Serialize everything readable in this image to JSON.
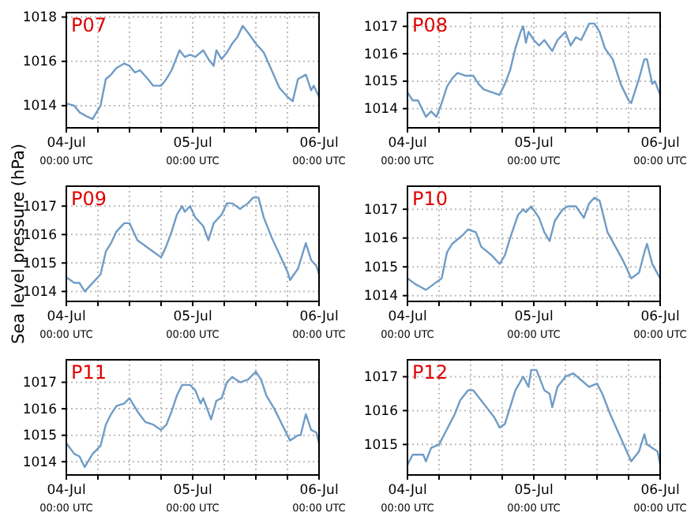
{
  "chart_data": [
    {
      "type": "line",
      "title": "P07",
      "xlim": [
        "--07-04T00:00",
        "--07-06T00:00"
      ],
      "ylim": [
        1013,
        1018.2
      ],
      "yticks": [
        1014,
        1016,
        1018
      ],
      "grid": true,
      "xticks": [
        {
          "value": "--07-04T00:00",
          "label": "04-Jul\n00:00 UTC"
        },
        {
          "value": "--07-04T06:00",
          "label": null
        },
        {
          "value": "--07-04T12:00",
          "label": null
        },
        {
          "value": "--07-04T18:00",
          "label": null
        },
        {
          "value": "--07-05T00:00",
          "label": "05-Jul\n00:00 UTC"
        },
        {
          "value": "--07-05T06:00",
          "label": null
        },
        {
          "value": "--07-05T12:00",
          "label": null
        },
        {
          "value": "--07-05T18:00",
          "label": null
        },
        {
          "value": "--07-06T00:00",
          "label": "06-Jul\n00:00 UTC"
        }
      ],
      "series": [
        {
          "color": "#6f9cc6",
          "x": [
            "--07-04T00:00",
            "--07-04T01:30",
            "--07-04T02:30",
            "--07-04T04:00",
            "--07-04T05:00",
            "--07-04T05:30",
            "--07-04T06:30",
            "--07-04T07:30",
            "--07-04T08:30",
            "--07-04T09:30",
            "--07-04T11:00",
            "--07-04T12:00",
            "--07-04T13:00",
            "--07-04T14:00",
            "--07-04T15:30",
            "--07-04T16:30",
            "--07-04T18:00",
            "--07-04T19:00",
            "--07-04T20:00",
            "--07-04T21:00",
            "--07-04T21:30",
            "--07-04T22:30",
            "--07-04T23:30",
            "--07-05T00:30",
            "--07-05T02:00",
            "--07-05T03:00",
            "--07-05T04:00",
            "--07-05T04:30",
            "--07-05T05:30",
            "--07-05T06:30",
            "--07-05T07:30",
            "--07-05T08:30",
            "--07-05T09:30",
            "--07-05T10:30",
            "--07-05T12:00",
            "--07-05T13:30",
            "--07-05T15:00",
            "--07-05T16:30",
            "--07-05T18:00",
            "--07-05T19:00",
            "--07-05T20:00",
            "--07-05T21:30",
            "--07-05T22:30",
            "--07-05T23:00",
            "--07-06T00:00"
          ],
          "values": [
            1014.1,
            1014,
            1013.7,
            1013.5,
            1013.4,
            1013.6,
            1014,
            1015.2,
            1015.4,
            1015.7,
            1015.9,
            1015.8,
            1015.5,
            1015.6,
            1015.2,
            1014.9,
            1014.9,
            1015.2,
            1015.6,
            1016.2,
            1016.5,
            1016.2,
            1016.3,
            1016.2,
            1016.5,
            1016.1,
            1015.8,
            1016.5,
            1016.1,
            1016.4,
            1016.8,
            1017.1,
            1017.6,
            1017.3,
            1016.8,
            1016.4,
            1015.6,
            1014.8,
            1014.4,
            1014.2,
            1015.2,
            1015.4,
            1014.7,
            1014.9,
            1014.4
          ]
        }
      ]
    },
    {
      "type": "line",
      "title": "P08",
      "xlim": [
        "--07-04T00:00",
        "--07-06T00:00"
      ],
      "ylim": [
        1013.3,
        1017.5
      ],
      "yticks": [
        1014,
        1015,
        1016,
        1017
      ],
      "grid": true,
      "xticks": [
        {
          "value": "--07-04T00:00",
          "label": "04-Jul\n00:00 UTC"
        },
        {
          "value": "--07-04T06:00",
          "label": null
        },
        {
          "value": "--07-04T12:00",
          "label": null
        },
        {
          "value": "--07-04T18:00",
          "label": null
        },
        {
          "value": "--07-05T00:00",
          "label": "05-Jul\n00:00 UTC"
        },
        {
          "value": "--07-05T06:00",
          "label": null
        },
        {
          "value": "--07-05T12:00",
          "label": null
        },
        {
          "value": "--07-05T18:00",
          "label": null
        },
        {
          "value": "--07-06T00:00",
          "label": "06-Jul\n00:00 UTC"
        }
      ],
      "series": [
        {
          "color": "#6f9cc6",
          "x": [
            "--07-04T00:00",
            "--07-04T01:00",
            "--07-04T02:00",
            "--07-04T03:00",
            "--07-04T03:30",
            "--07-04T04:30",
            "--07-04T05:30",
            "--07-04T06:30",
            "--07-04T07:30",
            "--07-04T08:30",
            "--07-04T09:30",
            "--07-04T11:00",
            "--07-04T12:30",
            "--07-04T13:30",
            "--07-04T14:30",
            "--07-04T16:00",
            "--07-04T17:30",
            "--07-04T18:30",
            "--07-04T19:30",
            "--07-04T20:30",
            "--07-04T21:30",
            "--07-04T22:00",
            "--07-04T22:30",
            "--07-04T23:00",
            "--07-05T00:00",
            "--07-05T01:00",
            "--07-05T02:00",
            "--07-05T03:30",
            "--07-05T04:30",
            "--07-05T06:00",
            "--07-05T07:00",
            "--07-05T08:00",
            "--07-05T09:00",
            "--07-05T10:30",
            "--07-05T11:30",
            "--07-05T12:30",
            "--07-05T13:30",
            "--07-05T15:00",
            "--07-05T16:30",
            "--07-05T18:00",
            "--07-05T18:30",
            "--07-05T20:00",
            "--07-05T21:00",
            "--07-05T21:30",
            "--07-05T22:30",
            "--07-05T23:00",
            "--07-06T00:00"
          ],
          "values": [
            1014.6,
            1014.3,
            1014.3,
            1013.9,
            1013.7,
            1013.9,
            1013.7,
            1014.2,
            1014.8,
            1015.1,
            1015.3,
            1015.2,
            1015.2,
            1014.9,
            1014.7,
            1014.6,
            1014.5,
            1014.9,
            1015.4,
            1016.2,
            1016.8,
            1017,
            1016.4,
            1016.8,
            1016.5,
            1016.3,
            1016.5,
            1016.1,
            1016.5,
            1016.8,
            1016.3,
            1016.6,
            1016.5,
            1017.1,
            1017.1,
            1016.8,
            1016.2,
            1015.8,
            1014.9,
            1014.3,
            1014.2,
            1015.1,
            1015.8,
            1015.8,
            1014.9,
            1015,
            1014.5
          ]
        }
      ]
    },
    {
      "type": "line",
      "title": "P09",
      "ylabel": "Sea level pressure (hPa)",
      "xlim": [
        "--07-04T00:00",
        "--07-06T00:00"
      ],
      "ylim": [
        1013.65,
        1017.7
      ],
      "yticks": [
        1014,
        1015,
        1016,
        1017
      ],
      "grid": true,
      "xticks": [
        {
          "value": "--07-04T00:00",
          "label": "04-Jul\n00:00 UTC"
        },
        {
          "value": "--07-04T06:00",
          "label": null
        },
        {
          "value": "--07-04T12:00",
          "label": null
        },
        {
          "value": "--07-04T18:00",
          "label": null
        },
        {
          "value": "--07-05T00:00",
          "label": "05-Jul\n00:00 UTC"
        },
        {
          "value": "--07-05T06:00",
          "label": null
        },
        {
          "value": "--07-05T12:00",
          "label": null
        },
        {
          "value": "--07-05T18:00",
          "label": null
        },
        {
          "value": "--07-06T00:00",
          "label": "06-Jul\n00:00 UTC"
        }
      ],
      "series": [
        {
          "color": "#6f9cc6",
          "x": [
            "--07-04T00:00",
            "--07-04T01:30",
            "--07-04T02:30",
            "--07-04T03:30",
            "--07-04T05:00",
            "--07-04T06:30",
            "--07-04T07:30",
            "--07-04T08:30",
            "--07-04T09:30",
            "--07-04T11:00",
            "--07-04T12:00",
            "--07-04T13:30",
            "--07-04T15:00",
            "--07-04T16:30",
            "--07-04T18:00",
            "--07-04T19:00",
            "--07-04T20:00",
            "--07-04T21:00",
            "--07-04T22:00",
            "--07-04T22:30",
            "--07-04T23:30",
            "--07-05T00:30",
            "--07-05T02:00",
            "--07-05T03:00",
            "--07-05T04:00",
            "--07-05T05:30",
            "--07-05T06:30",
            "--07-05T07:30",
            "--07-05T09:00",
            "--07-05T10:30",
            "--07-05T11:30",
            "--07-05T12:30",
            "--07-05T13:30",
            "--07-05T15:00",
            "--07-05T16:30",
            "--07-05T18:00",
            "--07-05T18:30",
            "--07-05T20:00",
            "--07-05T21:00",
            "--07-05T21:30",
            "--07-05T22:30",
            "--07-05T23:30",
            "--07-06T00:00"
          ],
          "values": [
            1014.5,
            1014.3,
            1014.3,
            1014,
            1014.3,
            1014.6,
            1015.4,
            1015.7,
            1016.1,
            1016.4,
            1016.4,
            1015.8,
            1015.6,
            1015.4,
            1015.2,
            1015.6,
            1016.1,
            1016.7,
            1017,
            1016.8,
            1017,
            1016.6,
            1016.3,
            1015.8,
            1016.4,
            1016.7,
            1017.1,
            1017.1,
            1016.9,
            1017.1,
            1017.3,
            1017.3,
            1016.6,
            1015.9,
            1015.3,
            1014.7,
            1014.4,
            1014.8,
            1015.4,
            1015.7,
            1015.1,
            1014.9,
            1014.6
          ]
        }
      ]
    },
    {
      "type": "line",
      "title": "P10",
      "xlim": [
        "--07-04T00:00",
        "--07-06T00:00"
      ],
      "ylim": [
        1013.8,
        1017.8
      ],
      "yticks": [
        1014,
        1015,
        1016,
        1017
      ],
      "grid": true,
      "xticks": [
        {
          "value": "--07-04T00:00",
          "label": "04-Jul\n00:00 UTC"
        },
        {
          "value": "--07-04T06:00",
          "label": null
        },
        {
          "value": "--07-04T12:00",
          "label": null
        },
        {
          "value": "--07-04T18:00",
          "label": null
        },
        {
          "value": "--07-05T00:00",
          "label": "05-Jul\n00:00 UTC"
        },
        {
          "value": "--07-05T06:00",
          "label": null
        },
        {
          "value": "--07-05T12:00",
          "label": null
        },
        {
          "value": "--07-05T18:00",
          "label": null
        },
        {
          "value": "--07-06T00:00",
          "label": "06-Jul\n00:00 UTC"
        }
      ],
      "series": [
        {
          "color": "#6f9cc6",
          "x": [
            "--07-04T00:00",
            "--07-04T01:30",
            "--07-04T02:30",
            "--07-04T03:30",
            "--07-04T05:00",
            "--07-04T06:30",
            "--07-04T07:30",
            "--07-04T08:30",
            "--07-04T10:30",
            "--07-04T11:30",
            "--07-04T13:00",
            "--07-04T14:00",
            "--07-04T16:00",
            "--07-04T17:30",
            "--07-04T18:30",
            "--07-04T19:30",
            "--07-04T21:00",
            "--07-04T22:00",
            "--07-04T22:30",
            "--07-04T23:30",
            "--07-05T01:00",
            "--07-05T02:00",
            "--07-05T03:00",
            "--07-05T04:00",
            "--07-05T05:30",
            "--07-05T06:30",
            "--07-05T08:00",
            "--07-05T09:30",
            "--07-05T10:30",
            "--07-05T11:30",
            "--07-05T12:30",
            "--07-05T14:00",
            "--07-05T15:30",
            "--07-05T17:00",
            "--07-05T18:30",
            "--07-05T20:00",
            "--07-05T21:00",
            "--07-05T21:30",
            "--07-05T22:30",
            "--07-06T00:00"
          ],
          "values": [
            1014.6,
            1014.4,
            1014.3,
            1014.2,
            1014.4,
            1014.6,
            1015.5,
            1015.8,
            1016.1,
            1016.3,
            1016.2,
            1015.7,
            1015.4,
            1015.1,
            1015.4,
            1016,
            1016.8,
            1017,
            1016.9,
            1017.1,
            1016.7,
            1016.2,
            1015.9,
            1016.6,
            1017,
            1017.1,
            1017.1,
            1016.7,
            1017.2,
            1017.4,
            1017.3,
            1016.2,
            1015.7,
            1015.2,
            1014.6,
            1014.8,
            1015.5,
            1015.8,
            1015.1,
            1014.6
          ]
        }
      ]
    },
    {
      "type": "line",
      "title": "P11",
      "xlim": [
        "--07-04T00:00",
        "--07-06T00:00"
      ],
      "ylim": [
        1013.5,
        1017.85
      ],
      "yticks": [
        1014,
        1015,
        1016,
        1017
      ],
      "grid": true,
      "xticks": [
        {
          "value": "--07-04T00:00",
          "label": "04-Jul\n00:00 UTC"
        },
        {
          "value": "--07-04T06:00",
          "label": null
        },
        {
          "value": "--07-04T12:00",
          "label": null
        },
        {
          "value": "--07-04T18:00",
          "label": null
        },
        {
          "value": "--07-05T00:00",
          "label": "05-Jul\n00:00 UTC"
        },
        {
          "value": "--07-05T06:00",
          "label": null
        },
        {
          "value": "--07-05T12:00",
          "label": null
        },
        {
          "value": "--07-05T18:00",
          "label": null
        },
        {
          "value": "--07-06T00:00",
          "label": "06-Jul\n00:00 UTC"
        }
      ],
      "series": [
        {
          "color": "#6f9cc6",
          "x": [
            "--07-04T00:00",
            "--07-04T01:30",
            "--07-04T02:30",
            "--07-04T03:30",
            "--07-04T05:00",
            "--07-04T06:30",
            "--07-04T07:30",
            "--07-04T08:30",
            "--07-04T09:30",
            "--07-04T11:00",
            "--07-04T12:00",
            "--07-04T13:30",
            "--07-04T15:00",
            "--07-04T16:30",
            "--07-04T18:00",
            "--07-04T19:00",
            "--07-04T20:00",
            "--07-04T21:00",
            "--07-04T22:00",
            "--07-04T23:30",
            "--07-05T00:30",
            "--07-05T01:30",
            "--07-05T02:00",
            "--07-05T03:30",
            "--07-05T04:30",
            "--07-05T05:30",
            "--07-05T06:30",
            "--07-05T07:30",
            "--07-05T09:00",
            "--07-05T10:30",
            "--07-05T12:00",
            "--07-05T13:00",
            "--07-05T14:00",
            "--07-05T15:30",
            "--07-05T17:00",
            "--07-05T18:30",
            "--07-05T20:00",
            "--07-05T20:30",
            "--07-05T21:30",
            "--07-05T22:30",
            "--07-05T23:30",
            "--07-06T00:00"
          ],
          "values": [
            1014.7,
            1014.3,
            1014.2,
            1013.8,
            1014.3,
            1014.6,
            1015.4,
            1015.8,
            1016.1,
            1016.2,
            1016.4,
            1015.9,
            1015.5,
            1015.4,
            1015.2,
            1015.4,
            1015.9,
            1016.5,
            1016.9,
            1016.9,
            1016.7,
            1016.2,
            1016.4,
            1015.6,
            1016.3,
            1016.4,
            1017,
            1017.2,
            1017,
            1017.1,
            1017.4,
            1017.1,
            1016.5,
            1016,
            1015.4,
            1014.8,
            1015,
            1015,
            1015.8,
            1015.2,
            1015.1,
            1014.7
          ]
        }
      ]
    },
    {
      "type": "line",
      "title": "P12",
      "xlim": [
        "--07-04T00:00",
        "--07-06T00:00"
      ],
      "ylim": [
        1014.1,
        1017.5
      ],
      "yticks": [
        1015,
        1016,
        1017
      ],
      "grid": true,
      "xticks": [
        {
          "value": "--07-04T00:00",
          "label": "04-Jul\n00:00 UTC"
        },
        {
          "value": "--07-04T06:00",
          "label": null
        },
        {
          "value": "--07-04T12:00",
          "label": null
        },
        {
          "value": "--07-04T18:00",
          "label": null
        },
        {
          "value": "--07-05T00:00",
          "label": "05-Jul\n00:00 UTC"
        },
        {
          "value": "--07-05T06:00",
          "label": null
        },
        {
          "value": "--07-05T12:00",
          "label": null
        },
        {
          "value": "--07-05T18:00",
          "label": null
        },
        {
          "value": "--07-06T00:00",
          "label": "06-Jul\n00:00 UTC"
        }
      ],
      "series": [
        {
          "color": "#6f9cc6",
          "x": [
            "--07-04T00:00",
            "--07-04T01:00",
            "--07-04T02:00",
            "--07-04T03:00",
            "--07-04T03:30",
            "--07-04T04:30",
            "--07-04T06:00",
            "--07-04T07:00",
            "--07-04T08:00",
            "--07-04T09:00",
            "--07-04T10:00",
            "--07-04T11:30",
            "--07-04T12:30",
            "--07-04T13:30",
            "--07-04T15:00",
            "--07-04T16:30",
            "--07-04T17:30",
            "--07-04T18:30",
            "--07-04T19:30",
            "--07-04T20:30",
            "--07-04T22:00",
            "--07-04T23:00",
            "--07-04T23:30",
            "--07-05T00:30",
            "--07-05T02:00",
            "--07-05T03:00",
            "--07-05T03:30",
            "--07-05T04:30",
            "--07-05T06:00",
            "--07-05T07:30",
            "--07-05T09:00",
            "--07-05T10:30",
            "--07-05T12:00",
            "--07-05T13:00",
            "--07-05T14:30",
            "--07-05T16:30",
            "--07-05T18:30",
            "--07-05T20:00",
            "--07-05T21:00",
            "--07-05T21:30",
            "--07-05T22:30",
            "--07-05T23:30",
            "--07-06T00:00"
          ],
          "values": [
            1014.4,
            1014.7,
            1014.7,
            1014.7,
            1014.5,
            1014.9,
            1015,
            1015.3,
            1015.6,
            1015.9,
            1016.3,
            1016.6,
            1016.6,
            1016.4,
            1016.1,
            1015.8,
            1015.5,
            1015.6,
            1016.1,
            1016.6,
            1017,
            1016.7,
            1017.2,
            1017.2,
            1016.6,
            1016.5,
            1016.1,
            1016.7,
            1017,
            1017.1,
            1016.9,
            1016.7,
            1016.8,
            1016.5,
            1015.9,
            1015.2,
            1014.5,
            1014.8,
            1015.3,
            1015,
            1014.9,
            1014.8,
            1014.4
          ]
        }
      ]
    }
  ]
}
